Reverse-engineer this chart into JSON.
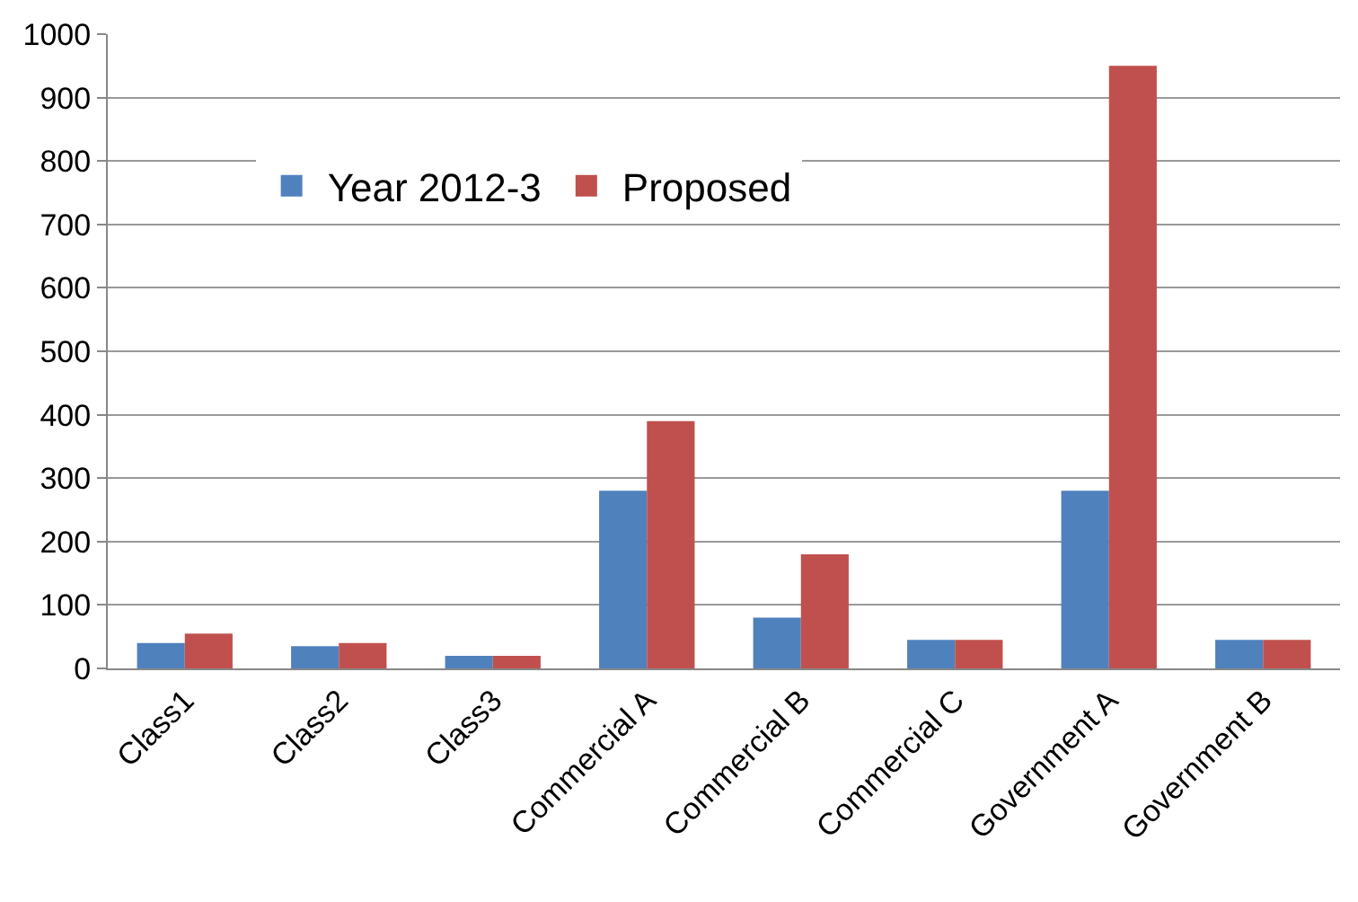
{
  "chart_data": {
    "type": "bar",
    "categories": [
      "Class1",
      "Class2",
      "Class3",
      "Commercial A",
      "Commercial B",
      "Commercial C",
      "Government A",
      "Government B"
    ],
    "series": [
      {
        "name": "Year 2012-3",
        "color": "#4f81bd",
        "values": [
          40,
          35,
          20,
          280,
          80,
          45,
          280,
          45
        ]
      },
      {
        "name": "Proposed",
        "color": "#c0504d",
        "values": [
          55,
          40,
          20,
          390,
          180,
          45,
          950,
          45
        ]
      }
    ],
    "ylim": [
      0,
      1000
    ],
    "yticks": [
      0,
      100,
      200,
      300,
      400,
      500,
      600,
      700,
      800,
      900,
      1000
    ],
    "grid": "y",
    "legend": "top left"
  }
}
